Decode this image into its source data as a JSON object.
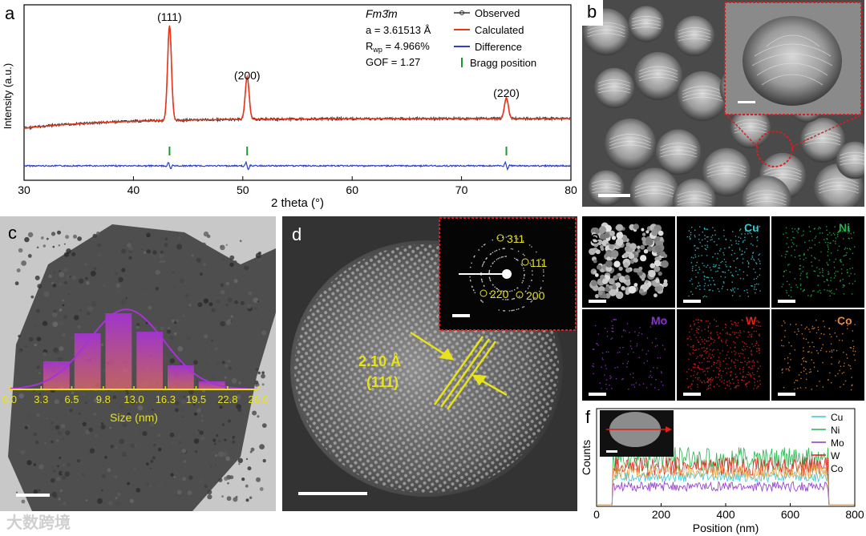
{
  "figure": {
    "panels": {
      "a": {
        "label": "a"
      },
      "b": {
        "label": "b"
      },
      "c": {
        "label": "c"
      },
      "d": {
        "label": "d",
        "d_spacing": "2.10 Å",
        "plane": "(111)",
        "saed_labels": [
          "311",
          "111",
          "220",
          "200"
        ]
      },
      "e": {
        "label": "e",
        "elements": [
          {
            "name": "Cu",
            "color": "#36c6cf"
          },
          {
            "name": "Ni",
            "color": "#22b24a"
          },
          {
            "name": "Mo",
            "color": "#8a35c9"
          },
          {
            "name": "W",
            "color": "#e0201a"
          },
          {
            "name": "Co",
            "color": "#e28a3a"
          }
        ]
      },
      "f": {
        "label": "f"
      }
    },
    "watermark": "大数跨境"
  },
  "chart_data": [
    {
      "type": "line",
      "panel": "a",
      "xlabel": "2 theta (°)",
      "ylabel": "Intensity (a.u.)",
      "xlim": [
        30,
        80
      ],
      "xticks": [
        30,
        40,
        50,
        60,
        70,
        80
      ],
      "peaks": [
        {
          "x": 43.3,
          "label": "(111)"
        },
        {
          "x": 50.4,
          "label": "(200)"
        },
        {
          "x": 74.1,
          "label": "(220)"
        }
      ],
      "bragg_positions": [
        43.3,
        50.4,
        74.1
      ],
      "legend": [
        "Observed",
        "Calculated",
        "Difference",
        "Bragg position"
      ],
      "legend_placement": "top-right",
      "annotation": {
        "space_group": "Fm3̄m",
        "a": "a = 3.61513 Å",
        "rwp_prefix": "R",
        "rwp_sub": "wp",
        "rwp_suffix": " = 4.966%",
        "gof": "GOF = 1.27"
      },
      "colors": {
        "observed": "#333333",
        "calculated": "#e8361c",
        "difference": "#2b3fd1",
        "bragg": "#1a9a2a"
      }
    },
    {
      "type": "bar",
      "panel": "c",
      "xlabel": "Size (nm)",
      "ticks": [
        "0.0",
        "3.3",
        "6.5",
        "9.8",
        "13.0",
        "16.3",
        "19.5",
        "22.8",
        "26.0"
      ],
      "bin_centers": [
        4.9,
        8.15,
        11.4,
        14.65,
        17.9,
        21.15
      ],
      "values": [
        0.35,
        0.7,
        0.95,
        0.72,
        0.3,
        0.1
      ],
      "fit": "gaussian",
      "colors": {
        "axis": "#e8e21c",
        "bar_top": "#a832d8",
        "bar_bottom": "#e86a6a"
      }
    },
    {
      "type": "line",
      "panel": "f",
      "xlabel": "Position (nm)",
      "ylabel": "Counts",
      "xlim": [
        0,
        800
      ],
      "xticks": [
        0,
        200,
        400,
        600,
        800
      ],
      "series": [
        {
          "name": "Cu",
          "color": "#36c6cf"
        },
        {
          "name": "Ni",
          "color": "#22b24a"
        },
        {
          "name": "Mo",
          "color": "#8a35c9"
        },
        {
          "name": "W",
          "color": "#e0201a"
        },
        {
          "name": "Co",
          "color": "#e2a040"
        }
      ],
      "signal_range": [
        50,
        720
      ],
      "legend_placement": "top-right"
    }
  ]
}
